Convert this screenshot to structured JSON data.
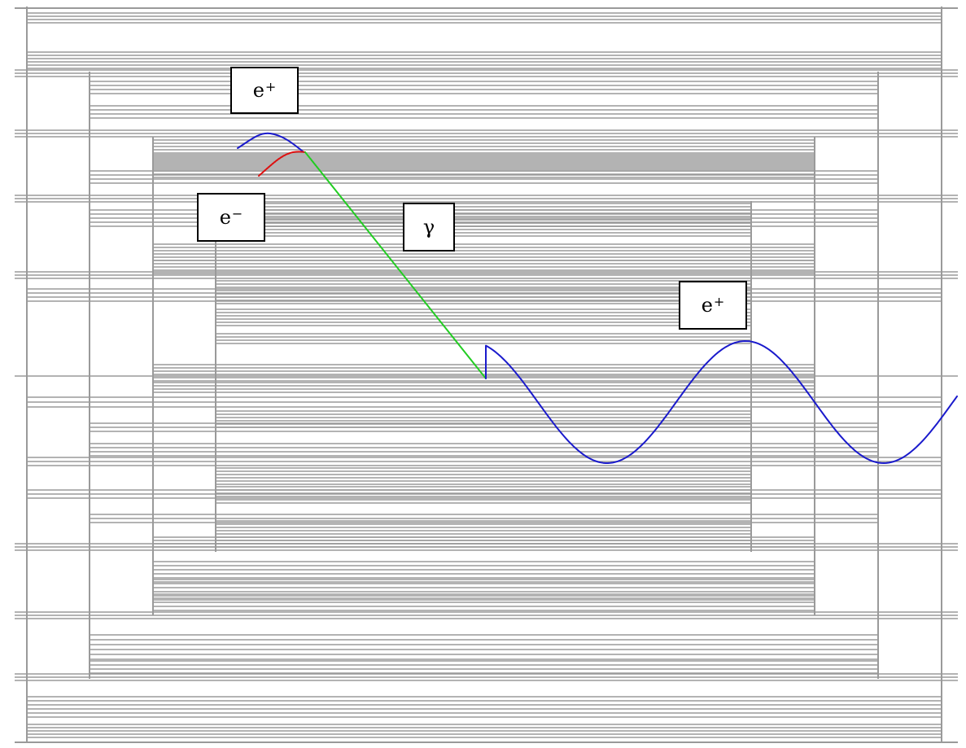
{
  "colors": {
    "grid": "#9a9a9a",
    "positron": "#1a1acc",
    "electron": "#dd1111",
    "photon": "#22cc22"
  },
  "labels": {
    "positron_top": {
      "base": "e",
      "sup": "+"
    },
    "electron": {
      "base": "e",
      "sup": "−"
    },
    "photon": {
      "base": "γ"
    },
    "positron_right": {
      "base": "e",
      "sup": "+"
    }
  },
  "tracks": [
    {
      "particle": "positron",
      "name": "positron-track-top",
      "icon": "wavy-line"
    },
    {
      "particle": "electron",
      "name": "electron-track",
      "icon": "arc-line"
    },
    {
      "particle": "photon",
      "name": "photon-track",
      "icon": "straight-line"
    },
    {
      "particle": "positron",
      "name": "positron-track-helix",
      "icon": "sine-wave"
    }
  ]
}
